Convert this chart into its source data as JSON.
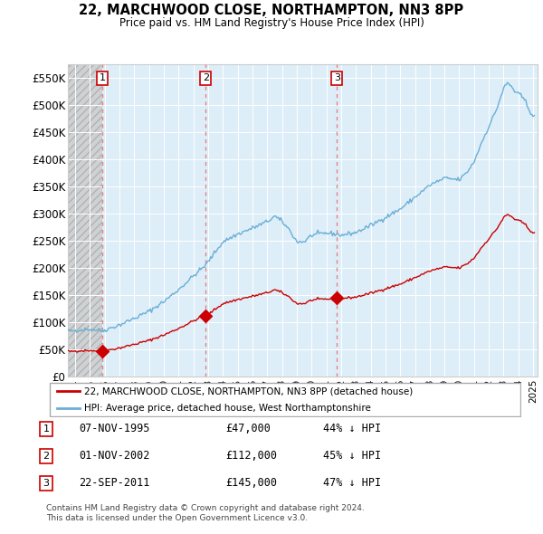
{
  "title": "22, MARCHWOOD CLOSE, NORTHAMPTON, NN3 8PP",
  "subtitle": "Price paid vs. HM Land Registry's House Price Index (HPI)",
  "legend_line1": "22, MARCHWOOD CLOSE, NORTHAMPTON, NN3 8PP (detached house)",
  "legend_line2": "HPI: Average price, detached house, West Northamptonshire",
  "footer1": "Contains HM Land Registry data © Crown copyright and database right 2024.",
  "footer2": "This data is licensed under the Open Government Licence v3.0.",
  "transactions": [
    {
      "num": 1,
      "date": "07-NOV-1995",
      "year": 1995.85,
      "price": 47000,
      "pct": "44% ↓ HPI"
    },
    {
      "num": 2,
      "date": "01-NOV-2002",
      "year": 2002.83,
      "price": 112000,
      "pct": "45% ↓ HPI"
    },
    {
      "num": 3,
      "date": "22-SEP-2011",
      "year": 2011.72,
      "price": 145000,
      "pct": "47% ↓ HPI"
    }
  ],
  "hpi_color": "#6baed6",
  "price_color": "#cc0000",
  "dashed_color": "#e88080",
  "ylim": [
    0,
    575000
  ],
  "xlim_start": 1993.5,
  "xlim_end": 2025.3,
  "yticks": [
    0,
    50000,
    100000,
    150000,
    200000,
    250000,
    300000,
    350000,
    400000,
    450000,
    500000,
    550000
  ],
  "ytick_labels": [
    "£0",
    "£50K",
    "£100K",
    "£150K",
    "£200K",
    "£250K",
    "£300K",
    "£350K",
    "£400K",
    "£450K",
    "£500K",
    "£550K"
  ],
  "xticks": [
    1994,
    1995,
    1996,
    1997,
    1998,
    1999,
    2000,
    2001,
    2002,
    2003,
    2004,
    2005,
    2006,
    2007,
    2008,
    2009,
    2010,
    2011,
    2012,
    2013,
    2014,
    2015,
    2016,
    2017,
    2018,
    2019,
    2020,
    2021,
    2022,
    2023,
    2024,
    2025
  ],
  "hatch_end": 1995.85,
  "chart_bg": "#ddeeff"
}
